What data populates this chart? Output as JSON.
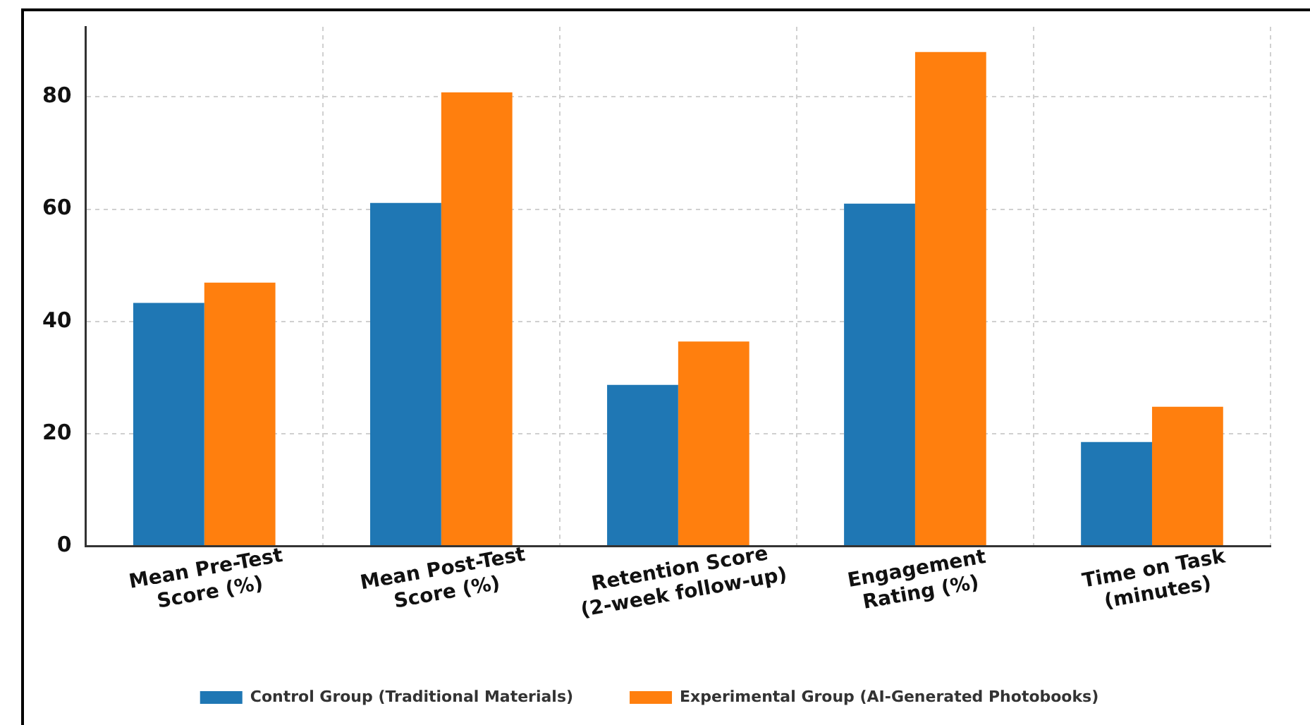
{
  "chart_data": {
    "type": "bar",
    "categories": [
      "Mean Pre-Test Score (%)",
      "Mean Post-Test Score (%)",
      "Retention Score (2-week follow-up)",
      "Engagement Rating (%)",
      "Time on Task (minutes)"
    ],
    "series": [
      {
        "name": "Control Group (Traditional Materials)",
        "color": "#1f77b4",
        "values": [
          43.3,
          61.1,
          28.7,
          61.0,
          18.5
        ]
      },
      {
        "name": "Experimental Group (AI-Generated Photobooks)",
        "color": "#ff7f0e",
        "values": [
          46.9,
          80.8,
          36.4,
          88.0,
          24.8
        ]
      }
    ],
    "ylim": [
      0,
      92.5
    ],
    "yticks": [
      0,
      20,
      40,
      60,
      80
    ],
    "grid": true,
    "legend": "bottom"
  }
}
